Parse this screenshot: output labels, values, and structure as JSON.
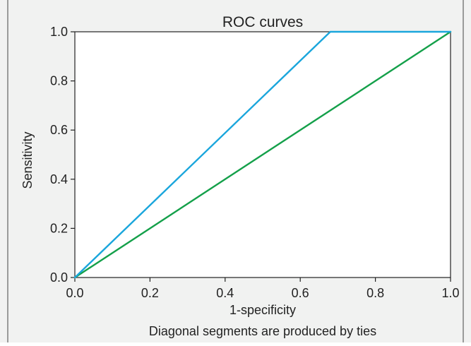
{
  "chart_data": {
    "type": "line",
    "title": "ROC curves",
    "xlabel": "1-specificity",
    "ylabel": "Sensitivity",
    "footnote": "Diagonal segments are produced by ties",
    "xlim": [
      0.0,
      1.0
    ],
    "ylim": [
      0.0,
      1.0
    ],
    "xticks": [
      "0.0",
      "0.2",
      "0.4",
      "0.6",
      "0.8",
      "1.0"
    ],
    "yticks": [
      "0.0",
      "0.2",
      "0.4",
      "0.6",
      "0.8",
      "1.0"
    ],
    "grid": false,
    "series": [
      {
        "color": "#1aa6dc",
        "x": [
          0.0,
          0.68,
          1.0
        ],
        "y": [
          0.0,
          1.0,
          1.0
        ]
      },
      {
        "color": "#14a04a",
        "x": [
          0.0,
          1.0
        ],
        "y": [
          0.0,
          1.0
        ]
      }
    ]
  },
  "colors": {
    "panel_background": "#f1f2f1",
    "plot_background": "#ffffff",
    "axis": "#222222",
    "border": "#444444"
  }
}
